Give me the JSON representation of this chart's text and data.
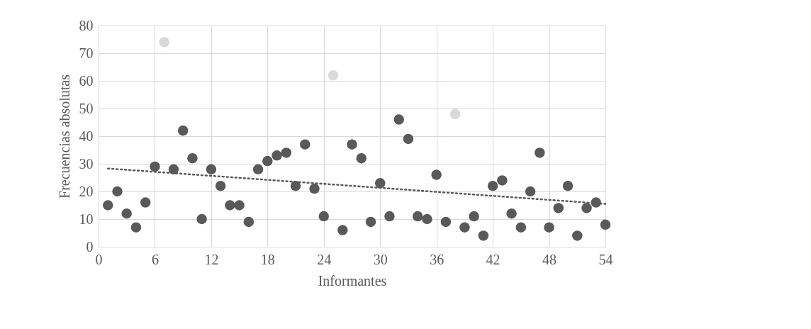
{
  "chart_data": {
    "type": "scatter",
    "xlabel": "Informantes",
    "ylabel": "Frecuencias absolutas",
    "xlim": [
      0,
      54
    ],
    "xticks": [
      0,
      6,
      12,
      18,
      24,
      30,
      36,
      42,
      48,
      54
    ],
    "ylim": [
      0,
      80
    ],
    "yticks": [
      0,
      10,
      20,
      30,
      40,
      50,
      60,
      70,
      80
    ],
    "grid": true,
    "marker": "circle",
    "series": [
      {
        "color": "#595959",
        "x": [
          1,
          2,
          3,
          4,
          5,
          6,
          8,
          9,
          10,
          11,
          12,
          13,
          14,
          15,
          16,
          17,
          18,
          19,
          20,
          21,
          22,
          23,
          24,
          26,
          27,
          28,
          29,
          30,
          31,
          32,
          33,
          34,
          35,
          36,
          37,
          39,
          40,
          41,
          42,
          43,
          44,
          45,
          46,
          47,
          48,
          49,
          50,
          51,
          52,
          53,
          54
        ],
        "values": [
          15,
          20,
          12,
          7,
          16,
          29,
          28,
          42,
          32,
          10,
          28,
          22,
          15,
          15,
          9,
          28,
          31,
          33,
          34,
          22,
          37,
          21,
          11,
          6,
          37,
          32,
          9,
          23,
          11,
          46,
          39,
          11,
          10,
          26,
          9,
          7,
          11,
          4,
          22,
          24,
          12,
          7,
          20,
          34,
          7,
          14,
          22,
          4,
          14,
          16,
          8
        ]
      },
      {
        "color": "#d9d9d9",
        "x": [
          7,
          25,
          38
        ],
        "values": [
          74,
          62,
          48
        ]
      },
      {
        "type": "line",
        "color": "#595959",
        "line_style": "dotted",
        "marker": "none",
        "x": [
          1,
          54
        ],
        "values": [
          28.3,
          15.5
        ]
      }
    ]
  }
}
